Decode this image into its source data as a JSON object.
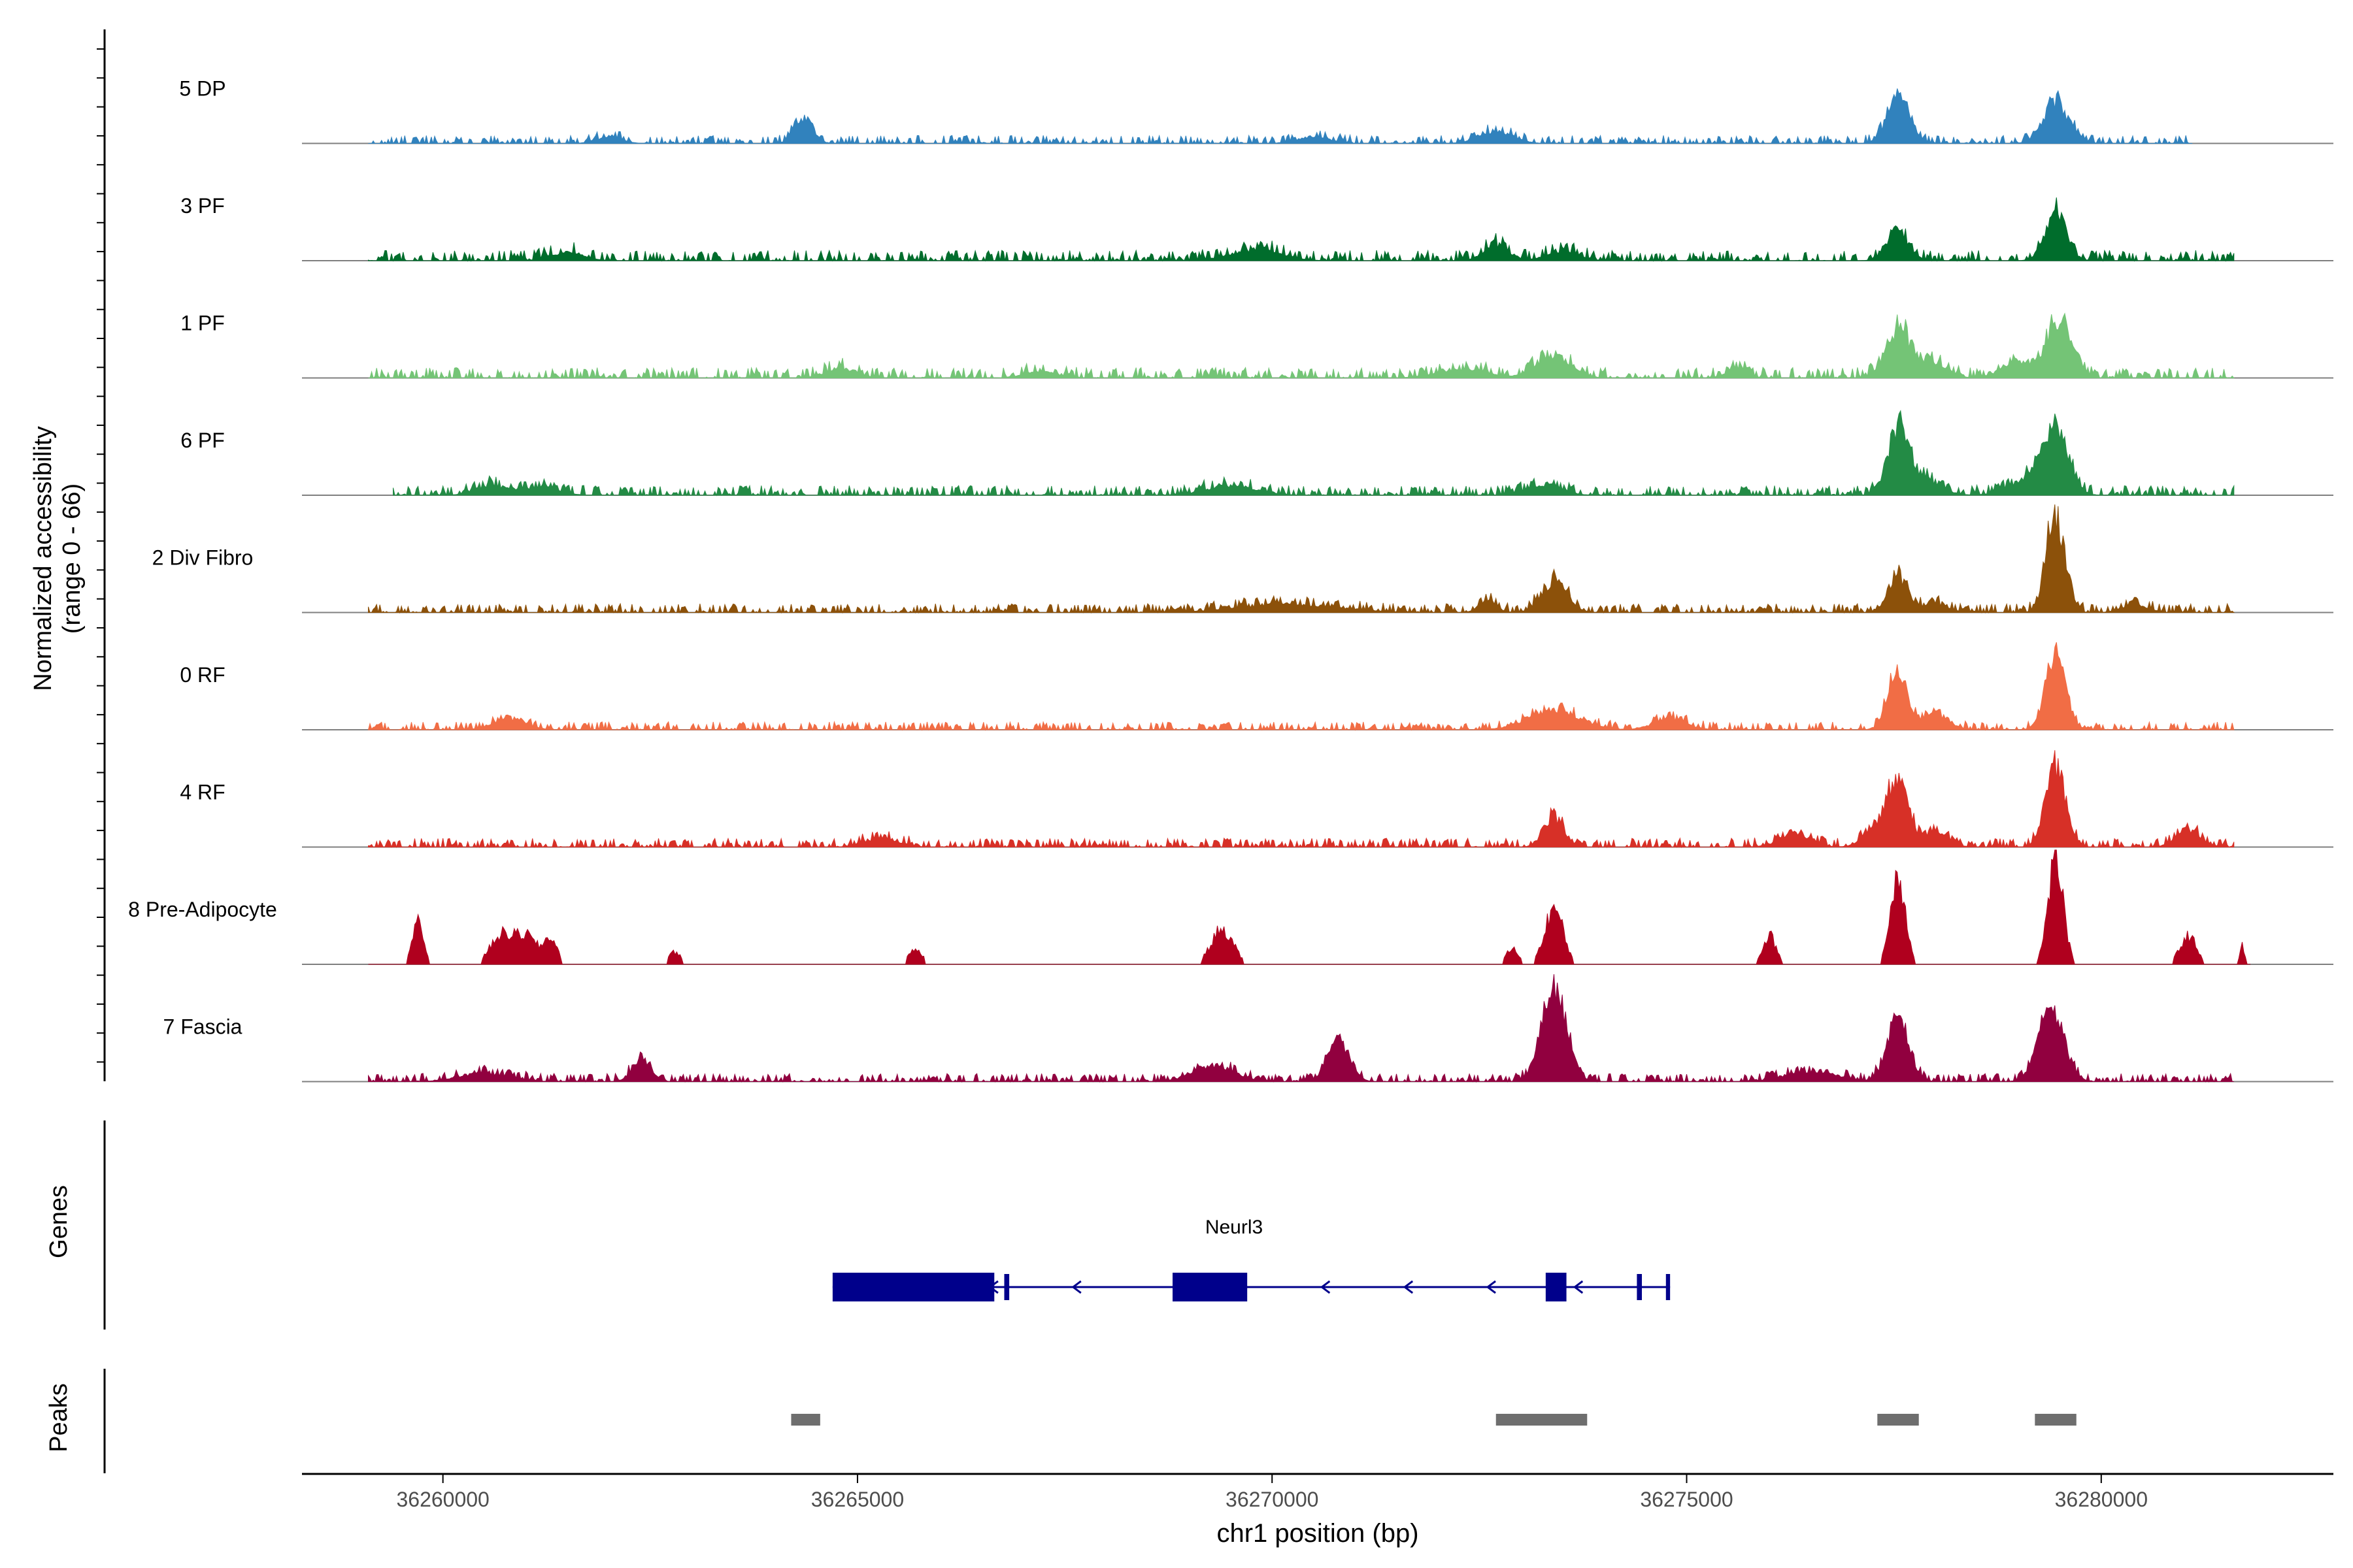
{
  "chart_data": {
    "type": "area",
    "title": "",
    "ylabel_line1": "Normalized accessibility",
    "ylabel_line2": "(range 0 - 66)",
    "xlabel": "chr1 position (bp)",
    "xlim": [
      36258300,
      36282800
    ],
    "ylim": [
      0,
      66
    ],
    "x_ticks": [
      {
        "value": 36260000,
        "label": "36260000"
      },
      {
        "value": 36265000,
        "label": "36265000"
      },
      {
        "value": 36270000,
        "label": "36270000"
      },
      {
        "value": 36275000,
        "label": "36275000"
      },
      {
        "value": 36280000,
        "label": "36280000"
      }
    ],
    "series": [
      {
        "name": "5 DP",
        "color": "#3182bd",
        "range": [
          36259100,
          36281100
        ],
        "noise": 0.05,
        "peaks": [
          [
            36264350,
            25,
            110
          ],
          [
            36277550,
            45,
            130
          ],
          [
            36279450,
            40,
            150
          ],
          [
            36272700,
            12,
            200
          ],
          [
            36262000,
            6,
            150
          ],
          [
            36270500,
            6,
            200
          ]
        ]
      },
      {
        "name": "3 PF",
        "color": "#006d2c",
        "range": [
          36259100,
          36281600
        ],
        "noise": 0.08,
        "peaks": [
          [
            36277550,
            28,
            130
          ],
          [
            36279450,
            45,
            130
          ],
          [
            36272700,
            15,
            150
          ],
          [
            36269800,
            10,
            300
          ],
          [
            36261500,
            8,
            200
          ],
          [
            36273500,
            8,
            200
          ]
        ]
      },
      {
        "name": "1 PF",
        "color": "#74c476",
        "range": [
          36259100,
          36281600
        ],
        "noise": 0.08,
        "peaks": [
          [
            36277550,
            48,
            150
          ],
          [
            36279500,
            55,
            150
          ],
          [
            36273400,
            22,
            200
          ],
          [
            36278000,
            15,
            150
          ],
          [
            36279000,
            15,
            200
          ],
          [
            36275600,
            10,
            120
          ],
          [
            36272300,
            8,
            300
          ],
          [
            36264800,
            8,
            200
          ],
          [
            36267200,
            6,
            200
          ]
        ]
      },
      {
        "name": "6 PF",
        "color": "#238b45",
        "range": [
          36259400,
          36281600
        ],
        "noise": 0.07,
        "peaks": [
          [
            36277550,
            60,
            130
          ],
          [
            36279450,
            58,
            150
          ],
          [
            36277850,
            15,
            200
          ],
          [
            36279150,
            15,
            250
          ],
          [
            36273300,
            10,
            200
          ],
          [
            36269500,
            9,
            300
          ],
          [
            36260600,
            9,
            200
          ],
          [
            36261200,
            8,
            200
          ]
        ]
      },
      {
        "name": "2 Div Fibro",
        "color": "#8c510a",
        "range": [
          36259100,
          36281600
        ],
        "noise": 0.06,
        "peaks": [
          [
            36279450,
            95,
            110
          ],
          [
            36277550,
            35,
            120
          ],
          [
            36273400,
            30,
            150
          ],
          [
            36272600,
            12,
            100
          ],
          [
            36270200,
            8,
            600
          ],
          [
            36278000,
            8,
            150
          ],
          [
            36280400,
            8,
            150
          ]
        ]
      },
      {
        "name": "0 RF",
        "color": "#f16d45",
        "range": [
          36259100,
          36281600
        ],
        "noise": 0.05,
        "peaks": [
          [
            36279450,
            75,
            120
          ],
          [
            36277550,
            55,
            120
          ],
          [
            36278000,
            15,
            150
          ],
          [
            36273400,
            20,
            300
          ],
          [
            36274800,
            10,
            200
          ],
          [
            36260800,
            10,
            200
          ]
        ]
      },
      {
        "name": "4 RF",
        "color": "#d73027",
        "range": [
          36259100,
          36281600
        ],
        "noise": 0.06,
        "peaks": [
          [
            36279450,
            75,
            120
          ],
          [
            36277550,
            60,
            120
          ],
          [
            36277300,
            20,
            150
          ],
          [
            36278000,
            15,
            150
          ],
          [
            36273400,
            28,
            120
          ],
          [
            36281050,
            15,
            150
          ],
          [
            36265300,
            8,
            200
          ],
          [
            36276300,
            10,
            200
          ]
        ]
      },
      {
        "name": "8 Pre-Adipocyte",
        "color": "#b0001e",
        "range": [
          36259100,
          36281800
        ],
        "noise": 0.0,
        "peaks": [
          [
            36279450,
            105,
            90
          ],
          [
            36277550,
            88,
            90
          ],
          [
            36273400,
            55,
            110
          ],
          [
            36259700,
            40,
            70
          ],
          [
            36260700,
            28,
            130
          ],
          [
            36261000,
            28,
            130
          ],
          [
            36261300,
            25,
            80
          ],
          [
            36269400,
            35,
            130
          ],
          [
            36281050,
            28,
            100
          ],
          [
            36276000,
            28,
            80
          ],
          [
            36265700,
            15,
            80
          ],
          [
            36262800,
            12,
            80
          ],
          [
            36272900,
            15,
            80
          ],
          [
            36281700,
            18,
            30
          ]
        ]
      },
      {
        "name": "7 Fascia",
        "color": "#91003f",
        "range": [
          36259100,
          36281600
        ],
        "noise": 0.05,
        "peaks": [
          [
            36273400,
            90,
            150
          ],
          [
            36277550,
            60,
            130
          ],
          [
            36279400,
            70,
            150
          ],
          [
            36270800,
            40,
            130
          ],
          [
            36262400,
            22,
            110
          ],
          [
            36269300,
            15,
            250
          ],
          [
            36276500,
            10,
            300
          ],
          [
            36260500,
            8,
            300
          ]
        ]
      }
    ],
    "genes_label": "Genes",
    "gene": {
      "name": "Neurl3",
      "start": 36264700,
      "end": 36274800,
      "strand": "-",
      "exons": [
        [
          36264700,
          36266650
        ],
        [
          36268800,
          36269700
        ],
        [
          36273300,
          36273550
        ],
        [
          36274400,
          36274460
        ],
        [
          36274750,
          36274800
        ],
        [
          36266770,
          36266830
        ]
      ]
    },
    "peaks_label": "Peaks",
    "peaks": [
      [
        36264200,
        36264550
      ],
      [
        36272700,
        36273800
      ],
      [
        36277300,
        36277800
      ],
      [
        36279200,
        36279700
      ]
    ]
  }
}
